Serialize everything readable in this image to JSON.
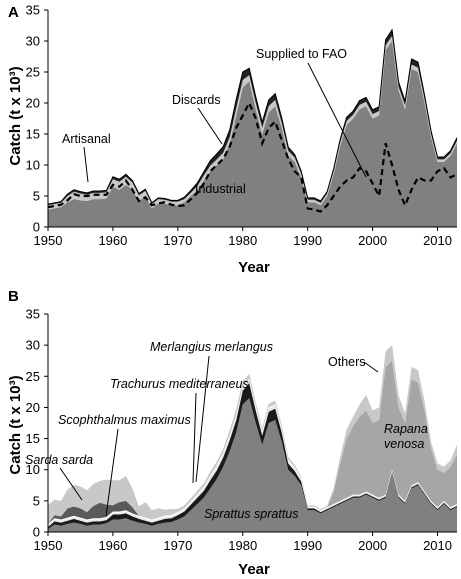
{
  "chart_data": [
    {
      "panel": "A",
      "type": "area",
      "xlabel": "Year",
      "ylabel": "Catch (t x 10³)",
      "xlim": [
        1950,
        2013
      ],
      "ylim": [
        0,
        35
      ],
      "xticks": [
        1950,
        1960,
        1970,
        1980,
        1990,
        2000,
        2010
      ],
      "yticks": [
        0,
        5,
        10,
        15,
        20,
        25,
        30,
        35
      ],
      "x": [
        1950,
        1951,
        1952,
        1953,
        1954,
        1955,
        1956,
        1957,
        1958,
        1959,
        1960,
        1961,
        1962,
        1963,
        1964,
        1965,
        1966,
        1967,
        1968,
        1969,
        1970,
        1971,
        1972,
        1973,
        1974,
        1975,
        1976,
        1977,
        1978,
        1979,
        1980,
        1981,
        1982,
        1983,
        1984,
        1985,
        1986,
        1987,
        1988,
        1989,
        1990,
        1991,
        1992,
        1993,
        1994,
        1995,
        1996,
        1997,
        1998,
        1999,
        2000,
        2001,
        2002,
        2003,
        2004,
        2005,
        2006,
        2007,
        2008,
        2009,
        2010,
        2011,
        2012,
        2013
      ],
      "series": [
        {
          "name": "Industrial",
          "color": "#808080",
          "values": [
            2.8,
            3.0,
            3.2,
            4.0,
            4.5,
            4.3,
            4.2,
            4.5,
            4.5,
            4.6,
            6.5,
            6.0,
            6.8,
            6.0,
            4.2,
            5.0,
            3.0,
            3.8,
            3.8,
            3.5,
            3.5,
            4.0,
            5.0,
            6.0,
            7.5,
            9.0,
            10.0,
            11.0,
            13.5,
            18.0,
            22.5,
            23.5,
            19.0,
            15.0,
            18.5,
            19.5,
            16.0,
            11.5,
            10.5,
            8.0,
            4.0,
            4.0,
            3.5,
            5.0,
            8.5,
            13.0,
            16.5,
            17.5,
            19.0,
            19.5,
            17.5,
            18.0,
            28.5,
            30.0,
            22.0,
            19.0,
            25.5,
            25.0,
            20.0,
            14.5,
            10.5,
            10.5,
            11.5,
            13.5
          ]
        },
        {
          "name": "Artisanal",
          "color": "#c8c8c8",
          "values": [
            0.7,
            0.7,
            0.7,
            1.0,
            1.2,
            1.1,
            1.0,
            1.0,
            1.0,
            1.0,
            1.2,
            1.3,
            1.3,
            1.2,
            0.9,
            0.8,
            0.7,
            0.7,
            0.6,
            0.6,
            0.6,
            0.5,
            0.5,
            0.6,
            0.8,
            0.9,
            0.9,
            1.0,
            1.0,
            1.2,
            1.2,
            1.0,
            1.0,
            1.0,
            1.0,
            1.0,
            0.8,
            0.8,
            0.7,
            0.6,
            0.4,
            0.4,
            0.4,
            0.4,
            0.5,
            0.6,
            0.6,
            0.6,
            0.7,
            0.7,
            0.7,
            0.7,
            0.8,
            0.8,
            0.6,
            0.6,
            0.7,
            0.7,
            0.6,
            0.5,
            0.4,
            0.4,
            0.4,
            0.4
          ]
        },
        {
          "name": "Discards",
          "color": "#222222",
          "values": [
            0.2,
            0.2,
            0.2,
            0.3,
            0.3,
            0.3,
            0.3,
            0.3,
            0.3,
            0.3,
            0.4,
            0.4,
            0.4,
            0.3,
            0.3,
            0.3,
            0.2,
            0.2,
            0.2,
            0.2,
            0.2,
            0.3,
            0.4,
            0.5,
            0.6,
            0.8,
            0.9,
            1.0,
            1.2,
            1.4,
            1.3,
            1.1,
            1.0,
            0.9,
            1.0,
            1.0,
            0.8,
            0.6,
            0.5,
            0.4,
            0.3,
            0.3,
            0.3,
            0.3,
            0.4,
            0.5,
            0.6,
            0.6,
            0.7,
            0.7,
            0.7,
            0.7,
            0.9,
            1.0,
            0.8,
            0.7,
            0.9,
            0.9,
            0.7,
            0.5,
            0.4,
            0.4,
            0.4,
            0.5
          ]
        },
        {
          "name": "Supplied to FAO",
          "style": "dashed",
          "color": "#000000",
          "values": [
            3.2,
            3.4,
            3.6,
            4.3,
            5.3,
            5.0,
            5.0,
            5.2,
            5.2,
            5.2,
            6.8,
            6.5,
            7.5,
            6.0,
            4.2,
            4.8,
            3.5,
            3.8,
            4.0,
            3.6,
            3.4,
            3.5,
            4.5,
            5.5,
            7.0,
            9.0,
            10.0,
            11.0,
            13.0,
            16.0,
            18.0,
            20.0,
            17.5,
            13.5,
            16.0,
            17.0,
            14.0,
            11.0,
            9.0,
            8.0,
            3.0,
            2.8,
            2.5,
            3.5,
            5.0,
            6.5,
            7.5,
            8.0,
            9.5,
            9.0,
            7.0,
            5.0,
            13.5,
            10.0,
            6.0,
            3.5,
            6.0,
            8.0,
            7.5,
            7.5,
            9.0,
            9.5,
            8.0,
            8.5
          ]
        }
      ],
      "annotations": [
        "Supplied to FAO",
        "Discards",
        "Artisanal",
        "Industrial"
      ]
    },
    {
      "panel": "B",
      "type": "area",
      "xlabel": "Year",
      "ylabel": "Catch (t x 10³)",
      "xlim": [
        1950,
        2013
      ],
      "ylim": [
        0,
        35
      ],
      "xticks": [
        1950,
        1960,
        1970,
        1980,
        1990,
        2000,
        2010
      ],
      "yticks": [
        0,
        5,
        10,
        15,
        20,
        25,
        30,
        35
      ],
      "x": [
        1950,
        1951,
        1952,
        1953,
        1954,
        1955,
        1956,
        1957,
        1958,
        1959,
        1960,
        1961,
        1962,
        1963,
        1964,
        1965,
        1966,
        1967,
        1968,
        1969,
        1970,
        1971,
        1972,
        1973,
        1974,
        1975,
        1976,
        1977,
        1978,
        1979,
        1980,
        1981,
        1982,
        1983,
        1984,
        1985,
        1986,
        1987,
        1988,
        1989,
        1990,
        1991,
        1992,
        1993,
        1994,
        1995,
        1996,
        1997,
        1998,
        1999,
        2000,
        2001,
        2002,
        2003,
        2004,
        2005,
        2006,
        2007,
        2008,
        2009,
        2010,
        2011,
        2012,
        2013
      ],
      "series": [
        {
          "name": "Sprattus sprattus",
          "color": "#808080",
          "values": [
            0.5,
            1.2,
            1.0,
            1.3,
            1.5,
            1.3,
            1.0,
            1.2,
            1.2,
            1.4,
            2.0,
            2.0,
            2.2,
            1.8,
            1.5,
            1.3,
            1.0,
            1.3,
            1.5,
            1.6,
            2.0,
            2.5,
            3.5,
            4.5,
            5.5,
            7.0,
            8.5,
            10.5,
            13.0,
            16.0,
            20.5,
            21.5,
            17.5,
            14.0,
            17.5,
            18.0,
            14.5,
            10.0,
            9.0,
            7.5,
            3.5,
            3.5,
            3.0,
            3.5,
            4.0,
            4.5,
            5.0,
            5.5,
            5.5,
            6.0,
            5.5,
            5.0,
            5.5,
            9.5,
            5.5,
            4.5,
            7.0,
            7.5,
            6.0,
            4.5,
            3.5,
            4.5,
            3.5,
            4.0
          ]
        },
        {
          "name": "Merlangius merlangus",
          "color": "#1a1a1a",
          "values": [
            0.3,
            0.5,
            0.5,
            0.5,
            0.6,
            0.5,
            0.5,
            0.5,
            0.5,
            0.5,
            0.8,
            0.8,
            0.8,
            0.7,
            0.6,
            0.5,
            0.5,
            0.5,
            0.6,
            0.6,
            0.7,
            0.8,
            0.9,
            1.0,
            1.1,
            1.3,
            1.4,
            1.5,
            1.8,
            2.0,
            2.2,
            2.4,
            2.0,
            1.5,
            1.8,
            1.8,
            1.5,
            1.0,
            0.8,
            0.6,
            0.3,
            0.3,
            0.2,
            0.2,
            0.2,
            0.2,
            0.2,
            0.2,
            0.2,
            0.2,
            0.2,
            0.2,
            0.2,
            0.2,
            0.2,
            0.2,
            0.2,
            0.2,
            0.2,
            0.2,
            0.2,
            0.2,
            0.2,
            0.2
          ]
        },
        {
          "name": "Trachurus mediterraneus",
          "color": "#e8e8e8",
          "values": [
            0.3,
            0.3,
            0.3,
            0.3,
            0.3,
            0.3,
            0.3,
            0.3,
            0.3,
            0.3,
            0.3,
            0.3,
            0.3,
            0.3,
            0.3,
            0.3,
            0.3,
            0.3,
            0.3,
            0.3,
            0.3,
            0.3,
            0.3,
            0.4,
            0.5,
            0.6,
            0.6,
            0.6,
            0.6,
            0.6,
            0.5,
            0.5,
            0.5,
            0.5,
            0.5,
            0.5,
            0.5,
            0.4,
            0.4,
            0.3,
            0.2,
            0.2,
            0.2,
            0.2,
            0.2,
            0.2,
            0.2,
            0.2,
            0.2,
            0.2,
            0.2,
            0.2,
            0.2,
            0.2,
            0.2,
            0.2,
            0.2,
            0.2,
            0.2,
            0.2,
            0.2,
            0.2,
            0.2,
            0.2
          ]
        },
        {
          "name": "Scophthalmus maximus",
          "color": "#ffffff",
          "values": [
            0.2,
            0.2,
            0.2,
            0.2,
            0.2,
            0.2,
            0.2,
            0.2,
            0.2,
            0.2,
            0.2,
            0.2,
            0.2,
            0.2,
            0.2,
            0.2,
            0.2,
            0.2,
            0.2,
            0.2,
            0.2,
            0.2,
            0.2,
            0.2,
            0.2,
            0.2,
            0.2,
            0.2,
            0.2,
            0.2,
            0.2,
            0.2,
            0.2,
            0.2,
            0.2,
            0.2,
            0.2,
            0.2,
            0.2,
            0.2,
            0.1,
            0.1,
            0.1,
            0.1,
            0.1,
            0.1,
            0.1,
            0.1,
            0.1,
            0.1,
            0.1,
            0.1,
            0.1,
            0.1,
            0.1,
            0.1,
            0.1,
            0.1,
            0.1,
            0.1,
            0.1,
            0.1,
            0.1,
            0.1
          ]
        },
        {
          "name": "Sarda sarda",
          "color": "#5a5a5a",
          "values": [
            0.0,
            0.5,
            0.5,
            1.5,
            1.5,
            1.5,
            1.2,
            2.0,
            2.5,
            2.0,
            1.0,
            1.5,
            1.5,
            1.0,
            0.0,
            0.0,
            0.0,
            0.0,
            0.0,
            0.0,
            0.0,
            0.0,
            0.0,
            0.0,
            0.0,
            0.0,
            0.0,
            0.0,
            0.0,
            0.0,
            0.0,
            0.0,
            0.0,
            0.0,
            0.0,
            0.0,
            0.0,
            0.0,
            0.0,
            0.0,
            0.0,
            0.0,
            0.0,
            0.0,
            0.0,
            0.0,
            0.0,
            0.0,
            0.0,
            0.0,
            0.0,
            0.0,
            0.0,
            0.0,
            0.0,
            0.0,
            0.0,
            0.0,
            0.0,
            0.0,
            0.0,
            0.0,
            0.0,
            0.0
          ]
        },
        {
          "name": "Rapana venosa",
          "color": "#a6a6a6",
          "values": [
            0.0,
            0.0,
            0.0,
            0.0,
            0.0,
            0.0,
            0.0,
            0.0,
            0.0,
            0.0,
            0.0,
            0.0,
            0.0,
            0.0,
            0.0,
            0.0,
            0.0,
            0.0,
            0.0,
            0.0,
            0.0,
            0.0,
            0.0,
            0.0,
            0.0,
            0.0,
            0.0,
            0.0,
            0.0,
            0.0,
            0.0,
            0.0,
            0.0,
            0.0,
            0.0,
            0.0,
            0.0,
            0.0,
            0.0,
            0.0,
            0.0,
            0.0,
            0.0,
            0.0,
            2.0,
            6.0,
            9.5,
            11.0,
            12.5,
            13.0,
            11.5,
            12.5,
            20.5,
            17.5,
            14.0,
            12.5,
            17.0,
            16.0,
            13.0,
            8.5,
            6.0,
            4.5,
            6.5,
            8.0
          ]
        },
        {
          "name": "Others",
          "color": "#c8c8c8",
          "values": [
            3.0,
            2.5,
            2.5,
            3.0,
            3.5,
            3.5,
            3.5,
            3.5,
            3.5,
            4.0,
            4.0,
            3.5,
            4.0,
            3.0,
            1.5,
            2.5,
            1.5,
            1.5,
            1.0,
            1.0,
            0.5,
            0.5,
            0.5,
            0.5,
            0.5,
            0.6,
            0.6,
            0.6,
            0.8,
            1.0,
            0.8,
            0.8,
            0.6,
            0.5,
            0.6,
            0.6,
            0.5,
            0.4,
            0.4,
            0.3,
            0.2,
            0.2,
            0.2,
            0.2,
            0.5,
            1.0,
            1.5,
            1.5,
            2.0,
            2.5,
            2.0,
            2.0,
            2.5,
            2.5,
            2.0,
            1.5,
            2.0,
            2.0,
            1.5,
            1.0,
            1.0,
            1.0,
            1.0,
            1.5
          ]
        }
      ],
      "annotations": [
        "Merlangius merlangus",
        "Trachurus mediterraneus",
        "Scophthalmus maximus",
        "Sarda sarda",
        "Others",
        "Rapana venosa",
        "Sprattus sprattus"
      ]
    }
  ],
  "labels": {
    "panel_a": "A",
    "panel_b": "B",
    "xlabel": "Year",
    "ylabel": "Catch (t x 10³)",
    "a_supplied": "Supplied to FAO",
    "a_discards": "Discards",
    "a_artisanal": "Artisanal",
    "a_industrial": "Industrial",
    "b_merlangius": "Merlangius merlangus",
    "b_trachurus": "Trachurus mediterraneus",
    "b_scophthalmus": "Scophthalmus maximus",
    "b_sarda": "Sarda sarda",
    "b_others": "Others",
    "b_rapana_1": "Rapana",
    "b_rapana_2": "venosa",
    "b_sprattus": "Sprattus sprattus"
  }
}
